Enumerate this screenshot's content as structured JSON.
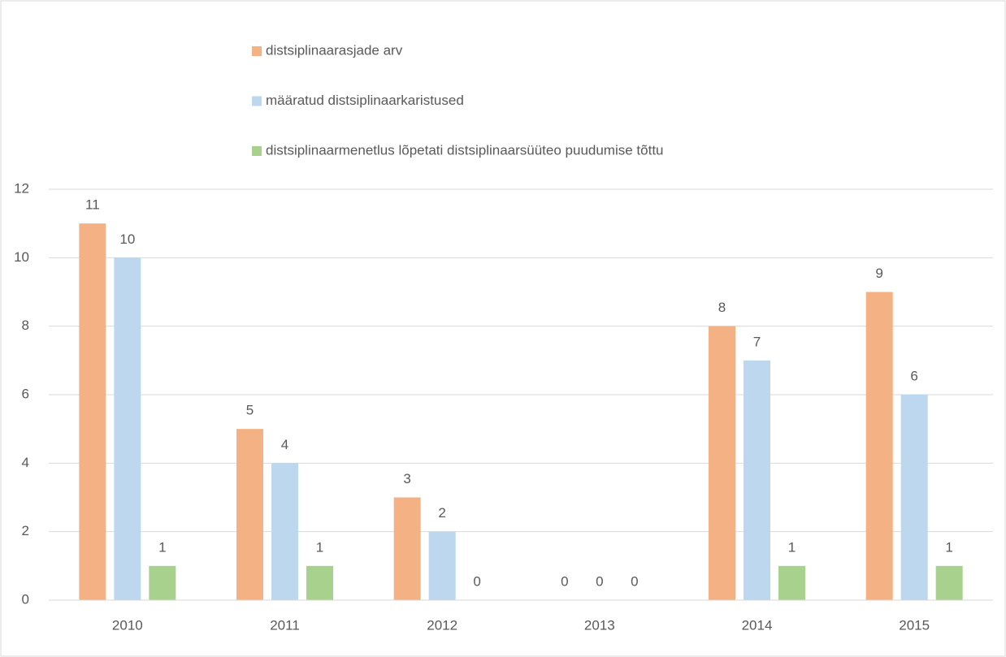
{
  "chart_data": {
    "type": "bar",
    "categories": [
      "2010",
      "2011",
      "2012",
      "2013",
      "2014",
      "2015"
    ],
    "series": [
      {
        "name": "distsiplinaarasjade arv",
        "color": "#f4b183",
        "values": [
          11,
          5,
          3,
          0,
          8,
          9
        ]
      },
      {
        "name": "määratud distsiplinaarkaristused",
        "color": "#bdd7ee",
        "values": [
          10,
          4,
          2,
          0,
          7,
          6
        ]
      },
      {
        "name": "distsiplinaarmenetlus lõpetati distsiplinaarsüüteo puudumise tõttu",
        "color": "#a9d18e",
        "values": [
          1,
          1,
          0,
          0,
          1,
          1
        ]
      }
    ],
    "ylim": [
      0,
      12
    ],
    "yticks": [
      0,
      2,
      4,
      6,
      8,
      10,
      12
    ],
    "grid": true,
    "legend": "top",
    "data_labels": true
  }
}
